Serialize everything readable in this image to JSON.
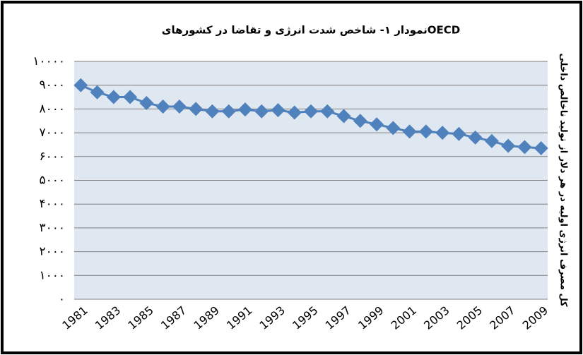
{
  "chart_data": {
    "type": "line",
    "title": "نمودار ۱- شاخص شدت انرژی و تقاضا در کشورهایOECD",
    "y_label": "کل مصرف انرژی اولیه در هر دلار از تولید ناخالص داخلی",
    "x": [
      1981,
      1982,
      1983,
      1984,
      1985,
      1986,
      1987,
      1988,
      1989,
      1990,
      1991,
      1992,
      1993,
      1994,
      1995,
      1996,
      1997,
      1998,
      1999,
      2000,
      2001,
      2002,
      2003,
      2004,
      2005,
      2006,
      2007,
      2008,
      2009
    ],
    "series": [
      {
        "color": "#4f81bd",
        "values": [
          9000,
          8700,
          8500,
          8500,
          8250,
          8100,
          8100,
          8000,
          7900,
          7900,
          7980,
          7900,
          7950,
          7850,
          7900,
          7900,
          7700,
          7500,
          7350,
          7200,
          7050,
          7050,
          7000,
          6950,
          6800,
          6650,
          6450,
          6400,
          6350
        ]
      }
    ],
    "xlim": [
      1980.6,
      2009.4
    ],
    "xticks": [
      1981,
      1983,
      1985,
      1987,
      1989,
      1991,
      1993,
      1995,
      1997,
      1999,
      2001,
      2003,
      2005,
      2007,
      2009
    ],
    "ylim": [
      0,
      10000
    ],
    "yticks": [
      {
        "value": 0,
        "label": "۰"
      },
      {
        "value": 1000,
        "label": "۱۰۰۰"
      },
      {
        "value": 2000,
        "label": "۲۰۰۰"
      },
      {
        "value": 3000,
        "label": "۳۰۰۰"
      },
      {
        "value": 4000,
        "label": "۴۰۰۰"
      },
      {
        "value": 5000,
        "label": "۵۰۰۰"
      },
      {
        "value": 6000,
        "label": "۶۰۰۰"
      },
      {
        "value": 7000,
        "label": "۷۰۰۰"
      },
      {
        "value": 8000,
        "label": "۸۰۰۰"
      },
      {
        "value": 9000,
        "label": "۹۰۰۰"
      },
      {
        "value": 10000,
        "label": "۱۰۰۰۰"
      }
    ],
    "grid": true
  }
}
